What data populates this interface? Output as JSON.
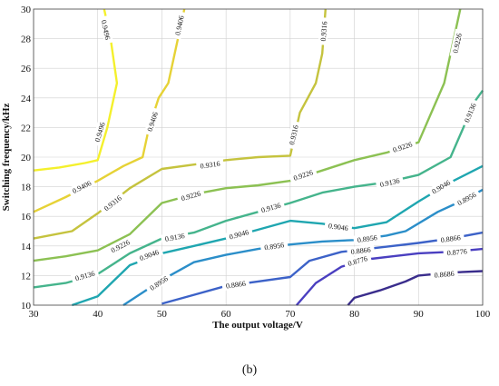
{
  "caption": "(b)",
  "chart_data": {
    "type": "contour",
    "xlabel": "The output voltage/V",
    "ylabel": "Switching frequency/kHz",
    "xlim": [
      30,
      100
    ],
    "ylim": [
      10,
      30
    ],
    "xticks": [
      30,
      40,
      50,
      60,
      70,
      80,
      90,
      100
    ],
    "yticks": [
      10,
      12,
      14,
      16,
      18,
      20,
      22,
      24,
      26,
      28,
      30
    ],
    "grid": true,
    "levels": [
      {
        "value": "0.9496",
        "color": "#f4f02c",
        "points": [
          [
            30,
            19.1
          ],
          [
            34,
            19.3
          ],
          [
            38,
            19.6
          ],
          [
            40,
            19.8
          ],
          [
            41.5,
            22
          ],
          [
            43,
            25
          ],
          [
            42,
            28
          ],
          [
            41,
            30
          ]
        ],
        "labels": [
          {
            "x": 40.3,
            "y": 21.7,
            "text": "0.9496"
          },
          {
            "x": 41.3,
            "y": 28.6,
            "text": "0.9496"
          }
        ]
      },
      {
        "value": "0.9406",
        "color": "#e6d236",
        "points": [
          [
            30,
            16.3
          ],
          [
            35,
            17.3
          ],
          [
            40,
            18.4
          ],
          [
            44,
            19.4
          ],
          [
            47,
            20
          ],
          [
            48,
            22
          ],
          [
            49.5,
            24
          ],
          [
            51,
            25
          ],
          [
            52.5,
            28
          ],
          [
            53.5,
            30
          ]
        ],
        "labels": [
          {
            "x": 37.5,
            "y": 18.0,
            "text": "0.9406"
          },
          {
            "x": 48.5,
            "y": 22.4,
            "text": "0.9406"
          },
          {
            "x": 52.7,
            "y": 28.9,
            "text": "0.9406"
          }
        ]
      },
      {
        "value": "0.9316",
        "color": "#c5c33e",
        "points": [
          [
            30,
            14.5
          ],
          [
            36,
            15
          ],
          [
            40,
            16.2
          ],
          [
            45,
            17.9
          ],
          [
            50,
            19.2
          ],
          [
            55,
            19.5
          ],
          [
            60,
            19.8
          ],
          [
            65,
            20
          ],
          [
            70,
            20.1
          ],
          [
            71.5,
            23
          ],
          [
            74,
            25
          ],
          [
            75,
            27
          ],
          [
            75.5,
            30
          ]
        ],
        "labels": [
          {
            "x": 42.3,
            "y": 16.9,
            "text": "0.9316"
          },
          {
            "x": 57.5,
            "y": 19.5,
            "text": "0.9316"
          },
          {
            "x": 70.5,
            "y": 21.5,
            "text": "0.9316"
          },
          {
            "x": 75.2,
            "y": 28.5,
            "text": "0.9316"
          }
        ]
      },
      {
        "value": "0.9226",
        "color": "#8cc153",
        "points": [
          [
            30,
            13
          ],
          [
            35,
            13.3
          ],
          [
            40,
            13.7
          ],
          [
            45,
            14.8
          ],
          [
            50,
            16.9
          ],
          [
            55,
            17.5
          ],
          [
            60,
            17.9
          ],
          [
            65,
            18.1
          ],
          [
            70,
            18.4
          ],
          [
            75,
            19.1
          ],
          [
            80,
            19.8
          ],
          [
            85,
            20.3
          ],
          [
            90,
            21
          ],
          [
            92,
            23
          ],
          [
            94,
            25
          ],
          [
            95.5,
            28
          ],
          [
            96.5,
            30
          ]
        ],
        "labels": [
          {
            "x": 43.5,
            "y": 14.0,
            "text": "0.9226"
          },
          {
            "x": 54.5,
            "y": 17.4,
            "text": "0.9226"
          },
          {
            "x": 72,
            "y": 18.8,
            "text": "0.9226"
          },
          {
            "x": 87.5,
            "y": 20.7,
            "text": "0.9226"
          },
          {
            "x": 96,
            "y": 27.7,
            "text": "0.9226"
          }
        ]
      },
      {
        "value": "0.9136",
        "color": "#45b48c",
        "points": [
          [
            30,
            11.2
          ],
          [
            35,
            11.5
          ],
          [
            40,
            12.1
          ],
          [
            45,
            13.5
          ],
          [
            50,
            14.5
          ],
          [
            55,
            14.9
          ],
          [
            60,
            15.7
          ],
          [
            65,
            16.3
          ],
          [
            70,
            16.9
          ],
          [
            75,
            17.6
          ],
          [
            80,
            18
          ],
          [
            85,
            18.3
          ],
          [
            90,
            18.8
          ],
          [
            95,
            20
          ],
          [
            97,
            22
          ],
          [
            98.5,
            23.6
          ],
          [
            100,
            24.5
          ]
        ],
        "labels": [
          {
            "x": 38,
            "y": 12.0,
            "text": "0.9136"
          },
          {
            "x": 52,
            "y": 14.6,
            "text": "0.9136"
          },
          {
            "x": 67,
            "y": 16.6,
            "text": "0.9136"
          },
          {
            "x": 85.5,
            "y": 18.3,
            "text": "0.9136"
          },
          {
            "x": 98,
            "y": 23.0,
            "text": "0.9136"
          }
        ]
      },
      {
        "value": "0.9046",
        "color": "#1fa6b0",
        "points": [
          [
            36,
            10
          ],
          [
            40,
            10.6
          ],
          [
            45,
            12.7
          ],
          [
            50,
            13.5
          ],
          [
            55,
            14
          ],
          [
            60,
            14.5
          ],
          [
            65,
            15.1
          ],
          [
            70,
            15.7
          ],
          [
            75,
            15.5
          ],
          [
            80,
            15.2
          ],
          [
            85,
            15.6
          ],
          [
            90,
            17
          ],
          [
            95,
            18.3
          ],
          [
            100,
            19.4
          ]
        ],
        "labels": [
          {
            "x": 48,
            "y": 13.4,
            "text": "0.9046"
          },
          {
            "x": 62,
            "y": 14.8,
            "text": "0.9046"
          },
          {
            "x": 77.5,
            "y": 15.3,
            "text": "0.9046"
          },
          {
            "x": 93.5,
            "y": 18.0,
            "text": "0.9046"
          }
        ]
      },
      {
        "value": "0.8956",
        "color": "#2b8ec9",
        "points": [
          [
            44,
            10
          ],
          [
            50,
            11.7
          ],
          [
            55,
            12.9
          ],
          [
            60,
            13.4
          ],
          [
            65,
            13.8
          ],
          [
            70,
            14.1
          ],
          [
            75,
            14.3
          ],
          [
            80,
            14.4
          ],
          [
            85,
            14.7
          ],
          [
            88,
            15
          ],
          [
            93,
            16.3
          ],
          [
            97,
            17.1
          ],
          [
            100,
            17.8
          ]
        ],
        "labels": [
          {
            "x": 49.5,
            "y": 11.5,
            "text": "0.8956"
          },
          {
            "x": 67.5,
            "y": 14.0,
            "text": "0.8956"
          },
          {
            "x": 82,
            "y": 14.5,
            "text": "0.8956"
          },
          {
            "x": 97.5,
            "y": 17.2,
            "text": "0.8956"
          }
        ]
      },
      {
        "value": "0.8866",
        "color": "#3c62c8",
        "points": [
          [
            50,
            10.1
          ],
          [
            55,
            10.7
          ],
          [
            60,
            11.3
          ],
          [
            65,
            11.6
          ],
          [
            70,
            11.9
          ],
          [
            73,
            13
          ],
          [
            78,
            13.6
          ],
          [
            82,
            13.8
          ],
          [
            86,
            14
          ],
          [
            90,
            14.2
          ],
          [
            95,
            14.5
          ],
          [
            100,
            14.9
          ]
        ],
        "labels": [
          {
            "x": 61.5,
            "y": 11.4,
            "text": "0.8866"
          },
          {
            "x": 81,
            "y": 13.7,
            "text": "0.8866"
          },
          {
            "x": 95,
            "y": 14.5,
            "text": "0.8866"
          }
        ]
      },
      {
        "value": "0.8776",
        "color": "#4a3fc0",
        "points": [
          [
            71,
            10
          ],
          [
            74,
            11.5
          ],
          [
            78,
            12.6
          ],
          [
            82,
            13.1
          ],
          [
            86,
            13.3
          ],
          [
            90,
            13.5
          ],
          [
            95,
            13.6
          ],
          [
            100,
            13.8
          ]
        ],
        "labels": [
          {
            "x": 80.5,
            "y": 13.0,
            "text": "0.8776"
          },
          {
            "x": 96,
            "y": 13.6,
            "text": "0.8776"
          }
        ]
      },
      {
        "value": "0.8686",
        "color": "#3a2d8c",
        "points": [
          [
            79,
            10
          ],
          [
            80,
            10.5
          ],
          [
            84,
            11
          ],
          [
            88,
            11.6
          ],
          [
            90,
            12
          ],
          [
            95,
            12.2
          ],
          [
            100,
            12.3
          ]
        ],
        "labels": [
          {
            "x": 94,
            "y": 12.1,
            "text": "0.8686"
          }
        ]
      }
    ]
  }
}
